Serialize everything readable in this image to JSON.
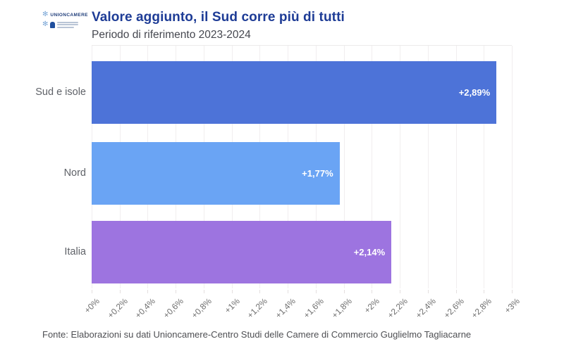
{
  "header": {
    "logo": {
      "org_name": "UNIONCAMERE",
      "snowflake_icon": "✻"
    },
    "title": "Valore aggiunto, il Sud corre più di tutti",
    "subtitle": "Periodo di riferimento 2023-2024"
  },
  "chart_data": {
    "type": "bar",
    "orientation": "horizontal",
    "title": "Valore aggiunto, il Sud corre più di tutti",
    "subtitle": "Periodo di riferimento 2023-2024",
    "categories": [
      "Sud e isole",
      "Nord",
      "Italia"
    ],
    "values": [
      2.89,
      1.77,
      2.14
    ],
    "value_labels": [
      "+2,89%",
      "+1,77%",
      "+2,14%"
    ],
    "bar_colors": [
      "#4d73d8",
      "#6aa4f4",
      "#9d74e0"
    ],
    "xlim": [
      0,
      3
    ],
    "x_ticks": [
      {
        "value": 0.0,
        "label": "+0%"
      },
      {
        "value": 0.2,
        "label": "+0,2%"
      },
      {
        "value": 0.4,
        "label": "+0,4%"
      },
      {
        "value": 0.6,
        "label": "+0,6%"
      },
      {
        "value": 0.8,
        "label": "+0,8%"
      },
      {
        "value": 1.0,
        "label": "+1%"
      },
      {
        "value": 1.2,
        "label": "+1,2%"
      },
      {
        "value": 1.4,
        "label": "+1,4%"
      },
      {
        "value": 1.6,
        "label": "+1,6%"
      },
      {
        "value": 1.8,
        "label": "+1,8%"
      },
      {
        "value": 2.0,
        "label": "+2%"
      },
      {
        "value": 2.2,
        "label": "+2,2%"
      },
      {
        "value": 2.4,
        "label": "+2,4%"
      },
      {
        "value": 2.6,
        "label": "+2,6%"
      },
      {
        "value": 2.8,
        "label": "+2,8%"
      },
      {
        "value": 3.0,
        "label": "+3%"
      }
    ],
    "grid": true,
    "legend": false
  },
  "footer": {
    "source": "Fonte: Elaborazioni su dati Unioncamere-Centro Studi delle Camere di Commercio Guglielmo Tagliacarne"
  },
  "colors": {
    "title": "#1e3c96",
    "subtitle": "#45474f",
    "category_label": "#5f6268",
    "tick_label": "#6e6e6e",
    "value_label": "#ffffff",
    "grid_line": "#f1eeef",
    "axis_tick": "#e4dfdf",
    "footer": "#4e4f53"
  }
}
